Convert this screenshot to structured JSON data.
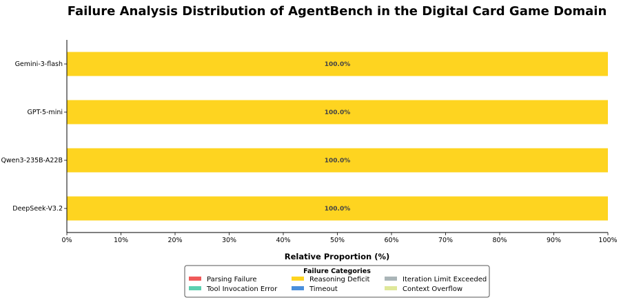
{
  "chart_data": {
    "type": "bar",
    "orientation": "horizontal",
    "stacked": true,
    "title": "Failure Analysis Distribution of AgentBench in the Digital Card Game Domain",
    "xlabel": "Relative Proportion (%)",
    "ylabel": "",
    "xlim": [
      0,
      100
    ],
    "xticks": [
      "0%",
      "10%",
      "20%",
      "30%",
      "40%",
      "50%",
      "60%",
      "70%",
      "80%",
      "90%",
      "100%"
    ],
    "categories": [
      "Gemini-3-flash",
      "GPT-5-mini",
      "Qwen3-235B-A22B",
      "DeepSeek-V3.2"
    ],
    "series": [
      {
        "name": "Parsing Failure",
        "color": "#f05a5a",
        "values": [
          0,
          0,
          0,
          0
        ]
      },
      {
        "name": "Tool Invocation Error",
        "color": "#5ccfb0",
        "values": [
          0,
          0,
          0,
          0
        ]
      },
      {
        "name": "Reasoning Deficit",
        "color": "#fed420",
        "values": [
          100,
          100,
          100,
          100
        ]
      },
      {
        "name": "Timeout",
        "color": "#4a8fdc",
        "values": [
          0,
          0,
          0,
          0
        ]
      },
      {
        "name": "Iteration Limit Exceeded",
        "color": "#aab5b8",
        "values": [
          0,
          0,
          0,
          0
        ]
      },
      {
        "name": "Context Overflow",
        "color": "#dfe89a",
        "values": [
          0,
          0,
          0,
          0
        ]
      }
    ],
    "data_labels": [
      "100.0%",
      "100.0%",
      "100.0%",
      "100.0%"
    ],
    "legend": {
      "title": "Failure Categories",
      "placement": "bottom-center",
      "columns": 3
    },
    "grid": false
  }
}
